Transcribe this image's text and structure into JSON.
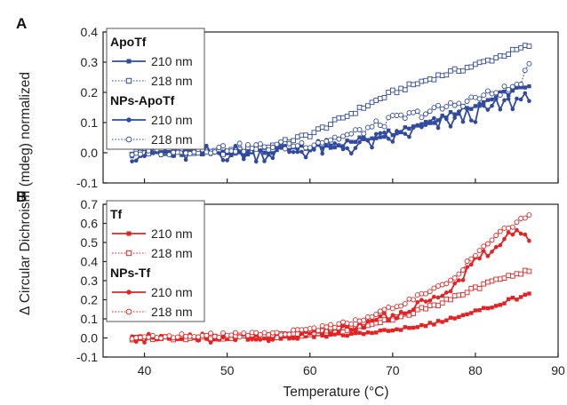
{
  "figure": {
    "xlabel": "Temperature (°C)",
    "ylabel": "Δ Circular Dichroism (mdeg) normalized"
  },
  "chart_data": [
    {
      "panel_label": "A",
      "type": "line",
      "xlim": [
        35,
        90
      ],
      "ylim": [
        -0.1,
        0.4
      ],
      "yticks": [
        -0.1,
        0.0,
        0.1,
        0.2,
        0.3,
        0.4
      ],
      "ytick_labels": [
        "-0.1",
        "0.0",
        "0.1",
        "0.2",
        "0.3",
        "0.4"
      ],
      "xticks": [
        40,
        50,
        60,
        70,
        80,
        90
      ],
      "show_x_tick_labels": false,
      "color": "#2f4a9e",
      "legend": {
        "placement": "top-left",
        "groups": [
          {
            "title": "ApoTf",
            "entries": [
              {
                "series": 0,
                "label": "210 nm"
              },
              {
                "series": 1,
                "label": "218 nm"
              }
            ]
          },
          {
            "title": "NPs-ApoTf",
            "entries": [
              {
                "series": 2,
                "label": "210 nm"
              },
              {
                "series": 3,
                "label": "218 nm"
              }
            ]
          }
        ]
      },
      "series": [
        {
          "style": "solid",
          "marker": "square-filled",
          "kp": [
            [
              38.5,
              0.0
            ],
            [
              45,
              0.0
            ],
            [
              50,
              0.0
            ],
            [
              55,
              0.005
            ],
            [
              60,
              0.015
            ],
            [
              65,
              0.035
            ],
            [
              70,
              0.07
            ],
            [
              75,
              0.11
            ],
            [
              80,
              0.16
            ],
            [
              85,
              0.21
            ],
            [
              86.5,
              0.21
            ]
          ],
          "noise": 0.012
        },
        {
          "style": "dotted",
          "marker": "square-open",
          "kp": [
            [
              38.5,
              0.0
            ],
            [
              45,
              0.0
            ],
            [
              50,
              0.002
            ],
            [
              55,
              0.02
            ],
            [
              60,
              0.06
            ],
            [
              65,
              0.13
            ],
            [
              70,
              0.2
            ],
            [
              75,
              0.25
            ],
            [
              80,
              0.29
            ],
            [
              85,
              0.34
            ],
            [
              86.5,
              0.355
            ]
          ],
          "noise": 0.008
        },
        {
          "style": "solid",
          "marker": "circle-filled",
          "kp": [
            [
              38.5,
              0.0
            ],
            [
              45,
              -0.005
            ],
            [
              50,
              0.0
            ],
            [
              55,
              0.0
            ],
            [
              60,
              0.01
            ],
            [
              65,
              0.02
            ],
            [
              70,
              0.05
            ],
            [
              75,
              0.09
            ],
            [
              80,
              0.13
            ],
            [
              85,
              0.17
            ],
            [
              86.5,
              0.2
            ]
          ],
          "noise": 0.03
        },
        {
          "style": "dotted",
          "marker": "circle-open",
          "kp": [
            [
              38.5,
              0.0
            ],
            [
              45,
              0.01
            ],
            [
              50,
              0.015
            ],
            [
              55,
              0.02
            ],
            [
              60,
              0.03
            ],
            [
              65,
              0.06
            ],
            [
              70,
              0.11
            ],
            [
              75,
              0.14
            ],
            [
              80,
              0.18
            ],
            [
              85,
              0.22
            ],
            [
              86.5,
              0.28
            ]
          ],
          "noise": 0.015
        }
      ]
    },
    {
      "panel_label": "B",
      "type": "line",
      "xlim": [
        35,
        90
      ],
      "ylim": [
        -0.1,
        0.7
      ],
      "yticks": [
        -0.1,
        0.0,
        0.1,
        0.2,
        0.3,
        0.4,
        0.5,
        0.6,
        0.7
      ],
      "ytick_labels": [
        "-0.1",
        "0.0",
        "0.1",
        "0.2",
        "0.3",
        "0.4",
        "0.5",
        "0.6",
        "0.7"
      ],
      "xticks": [
        40,
        50,
        60,
        70,
        80,
        90
      ],
      "xtick_labels": [
        "40",
        "50",
        "60",
        "70",
        "80",
        "90"
      ],
      "show_x_tick_labels": true,
      "color": "#e52222",
      "legend": {
        "placement": "top-left",
        "groups": [
          {
            "title": "Tf",
            "entries": [
              {
                "series": 0,
                "label": "210 nm"
              },
              {
                "series": 1,
                "label": "218 nm"
              }
            ]
          },
          {
            "title": "NPs-Tf",
            "entries": [
              {
                "series": 2,
                "label": "210 nm"
              },
              {
                "series": 3,
                "label": "218 nm"
              }
            ]
          }
        ]
      },
      "series": [
        {
          "style": "solid",
          "marker": "square-filled",
          "kp": [
            [
              38.5,
              0.0
            ],
            [
              45,
              0.0
            ],
            [
              50,
              0.0
            ],
            [
              55,
              0.0
            ],
            [
              60,
              0.01
            ],
            [
              65,
              0.02
            ],
            [
              70,
              0.04
            ],
            [
              75,
              0.08
            ],
            [
              80,
              0.14
            ],
            [
              85,
              0.21
            ],
            [
              86.5,
              0.23
            ]
          ],
          "noise": 0.01
        },
        {
          "style": "dotted",
          "marker": "square-open",
          "kp": [
            [
              38.5,
              0.0
            ],
            [
              45,
              0.0
            ],
            [
              50,
              0.005
            ],
            [
              55,
              0.01
            ],
            [
              60,
              0.02
            ],
            [
              65,
              0.05
            ],
            [
              70,
              0.1
            ],
            [
              75,
              0.17
            ],
            [
              80,
              0.26
            ],
            [
              85,
              0.34
            ],
            [
              86.5,
              0.35
            ]
          ],
          "noise": 0.01
        },
        {
          "style": "solid",
          "marker": "circle-filled",
          "kp": [
            [
              38.5,
              0.0
            ],
            [
              45,
              0.0
            ],
            [
              50,
              0.0
            ],
            [
              55,
              0.0
            ],
            [
              60,
              0.02
            ],
            [
              65,
              0.06
            ],
            [
              70,
              0.12
            ],
            [
              75,
              0.2
            ],
            [
              78,
              0.3
            ],
            [
              80,
              0.4
            ],
            [
              82,
              0.47
            ],
            [
              84,
              0.53
            ],
            [
              86,
              0.56
            ],
            [
              86.5,
              0.53
            ]
          ],
          "noise": 0.025
        },
        {
          "style": "dotted",
          "marker": "circle-open",
          "kp": [
            [
              38.5,
              0.0
            ],
            [
              45,
              0.01
            ],
            [
              50,
              0.015
            ],
            [
              55,
              0.02
            ],
            [
              60,
              0.04
            ],
            [
              65,
              0.08
            ],
            [
              70,
              0.16
            ],
            [
              75,
              0.25
            ],
            [
              78,
              0.34
            ],
            [
              80,
              0.44
            ],
            [
              82,
              0.52
            ],
            [
              84,
              0.58
            ],
            [
              86,
              0.63
            ],
            [
              86.5,
              0.64
            ]
          ],
          "noise": 0.012
        }
      ]
    }
  ]
}
